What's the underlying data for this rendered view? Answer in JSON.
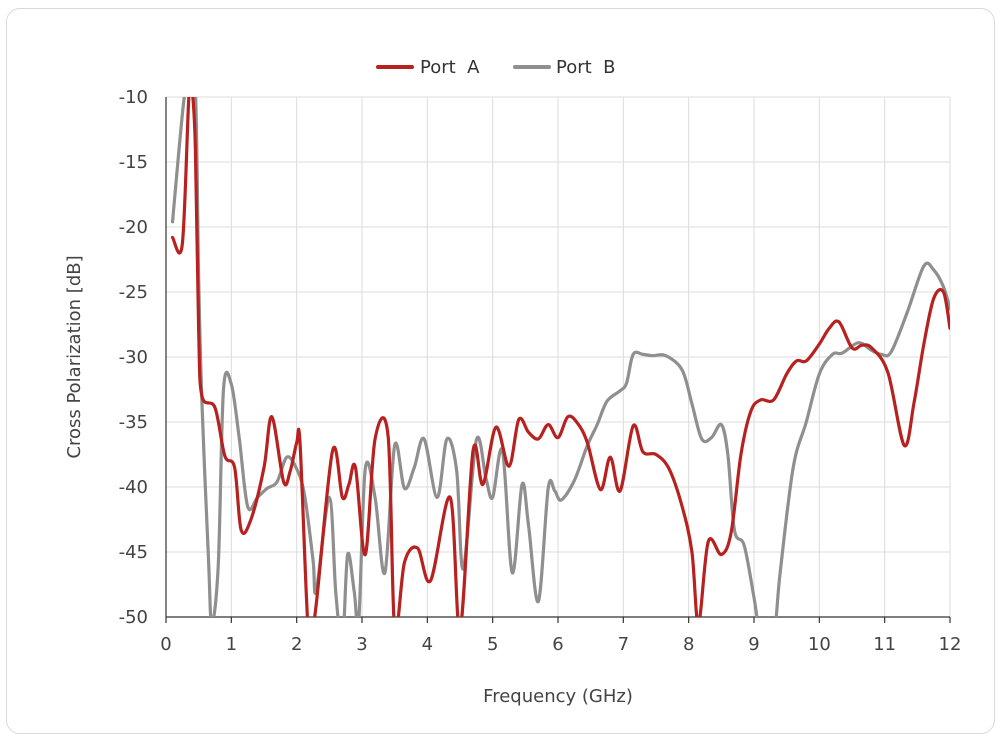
{
  "chart_data": {
    "type": "line",
    "xlabel": "Frequency (GHz)",
    "ylabel": "Cross Polarization [dB]",
    "xlim": [
      0,
      12
    ],
    "ylim": [
      -50,
      -10
    ],
    "x_ticks": [
      "0",
      "1",
      "2",
      "3",
      "4",
      "5",
      "6",
      "7",
      "8",
      "9",
      "10",
      "11",
      "12"
    ],
    "y_ticks": [
      "-10",
      "-15",
      "-20",
      "-25",
      "-30",
      "-35",
      "-40",
      "-45",
      "-50"
    ],
    "grid": true,
    "legend_position": "top-center",
    "series": [
      {
        "name": "Port  A",
        "color": "#b7211f",
        "points": [
          [
            0.1,
            -20.8
          ],
          [
            0.25,
            -21.3
          ],
          [
            0.35,
            -10
          ],
          [
            0.4,
            -9.5
          ],
          [
            0.45,
            -14
          ],
          [
            0.5,
            -28
          ],
          [
            0.55,
            -33
          ],
          [
            0.75,
            -33.9
          ],
          [
            0.9,
            -37.6
          ],
          [
            1.05,
            -38.5
          ],
          [
            1.15,
            -43.3
          ],
          [
            1.3,
            -42.5
          ],
          [
            1.5,
            -38.5
          ],
          [
            1.62,
            -34.6
          ],
          [
            1.8,
            -39.6
          ],
          [
            1.9,
            -38.8
          ],
          [
            2.0,
            -36.6
          ],
          [
            2.05,
            -36.5
          ],
          [
            2.15,
            -48.5
          ],
          [
            2.2,
            -52
          ],
          [
            2.3,
            -49
          ],
          [
            2.55,
            -37.2
          ],
          [
            2.7,
            -40.8
          ],
          [
            2.8,
            -39.8
          ],
          [
            2.9,
            -38.5
          ],
          [
            3.05,
            -45.2
          ],
          [
            3.2,
            -36.3
          ],
          [
            3.4,
            -36.1
          ],
          [
            3.5,
            -51
          ],
          [
            3.65,
            -45.8
          ],
          [
            3.85,
            -44.7
          ],
          [
            4.05,
            -47.2
          ],
          [
            4.35,
            -40.8
          ],
          [
            4.5,
            -51
          ],
          [
            4.7,
            -37.2
          ],
          [
            4.85,
            -39.8
          ],
          [
            5.05,
            -35.4
          ],
          [
            5.25,
            -38.4
          ],
          [
            5.4,
            -34.8
          ],
          [
            5.55,
            -35.8
          ],
          [
            5.7,
            -36.3
          ],
          [
            5.85,
            -35.2
          ],
          [
            6.0,
            -36.2
          ],
          [
            6.15,
            -34.6
          ],
          [
            6.3,
            -35.1
          ],
          [
            6.45,
            -36.6
          ],
          [
            6.65,
            -40.2
          ],
          [
            6.8,
            -37.7
          ],
          [
            6.95,
            -40.3
          ],
          [
            7.15,
            -35.3
          ],
          [
            7.3,
            -37.3
          ],
          [
            7.5,
            -37.5
          ],
          [
            7.7,
            -38.6
          ],
          [
            7.9,
            -41.5
          ],
          [
            8.05,
            -45
          ],
          [
            8.15,
            -50.5
          ],
          [
            8.3,
            -44.2
          ],
          [
            8.5,
            -45.2
          ],
          [
            8.65,
            -43.5
          ],
          [
            8.8,
            -37.5
          ],
          [
            8.95,
            -34.2
          ],
          [
            9.1,
            -33.3
          ],
          [
            9.3,
            -33.3
          ],
          [
            9.5,
            -31.3
          ],
          [
            9.65,
            -30.3
          ],
          [
            9.8,
            -30.3
          ],
          [
            10.0,
            -29
          ],
          [
            10.15,
            -27.8
          ],
          [
            10.3,
            -27.3
          ],
          [
            10.5,
            -29.3
          ],
          [
            10.65,
            -29.1
          ],
          [
            10.8,
            -29.3
          ],
          [
            11.05,
            -31.2
          ],
          [
            11.3,
            -36.8
          ],
          [
            11.45,
            -33.5
          ],
          [
            11.6,
            -29
          ],
          [
            11.75,
            -25.5
          ],
          [
            11.9,
            -25
          ],
          [
            12.0,
            -27.8
          ]
        ]
      },
      {
        "name": "Port  B",
        "color": "#8f8f8f",
        "points": [
          [
            0.1,
            -19.6
          ],
          [
            0.2,
            -14
          ],
          [
            0.28,
            -10
          ],
          [
            0.35,
            -8.5
          ],
          [
            0.45,
            -9.5
          ],
          [
            0.5,
            -24
          ],
          [
            0.55,
            -33.5
          ],
          [
            0.65,
            -45.5
          ],
          [
            0.7,
            -50.5
          ],
          [
            0.8,
            -46
          ],
          [
            0.88,
            -32.5
          ],
          [
            1.0,
            -32.1
          ],
          [
            1.12,
            -36.2
          ],
          [
            1.25,
            -41.5
          ],
          [
            1.4,
            -40.8
          ],
          [
            1.55,
            -40.1
          ],
          [
            1.7,
            -39.6
          ],
          [
            1.85,
            -37.7
          ],
          [
            2.0,
            -38.6
          ],
          [
            2.12,
            -40.6
          ],
          [
            2.25,
            -45.6
          ],
          [
            2.3,
            -48
          ],
          [
            2.5,
            -40.8
          ],
          [
            2.6,
            -48.2
          ],
          [
            2.7,
            -52
          ],
          [
            2.78,
            -45.2
          ],
          [
            2.88,
            -48
          ],
          [
            2.95,
            -50.3
          ],
          [
            3.05,
            -38.6
          ],
          [
            3.2,
            -40.8
          ],
          [
            3.35,
            -46.6
          ],
          [
            3.5,
            -36.8
          ],
          [
            3.65,
            -40.1
          ],
          [
            3.8,
            -38.5
          ],
          [
            3.95,
            -36.3
          ],
          [
            4.15,
            -40.8
          ],
          [
            4.3,
            -36.3
          ],
          [
            4.45,
            -38.8
          ],
          [
            4.55,
            -46.3
          ],
          [
            4.75,
            -36.4
          ],
          [
            4.9,
            -39.4
          ],
          [
            5.0,
            -40.8
          ],
          [
            5.15,
            -37.2
          ],
          [
            5.3,
            -46.6
          ],
          [
            5.45,
            -39.8
          ],
          [
            5.55,
            -43
          ],
          [
            5.7,
            -48.8
          ],
          [
            5.85,
            -40.1
          ],
          [
            5.95,
            -40.3
          ],
          [
            6.05,
            -41
          ],
          [
            6.25,
            -39.5
          ],
          [
            6.45,
            -36.8
          ],
          [
            6.6,
            -35.2
          ],
          [
            6.75,
            -33.4
          ],
          [
            6.95,
            -32.6
          ],
          [
            7.05,
            -32
          ],
          [
            7.15,
            -29.8
          ],
          [
            7.3,
            -29.8
          ],
          [
            7.45,
            -29.9
          ],
          [
            7.65,
            -29.9
          ],
          [
            7.9,
            -31
          ],
          [
            8.05,
            -33.6
          ],
          [
            8.2,
            -36.3
          ],
          [
            8.35,
            -36.2
          ],
          [
            8.5,
            -35.2
          ],
          [
            8.6,
            -37.5
          ],
          [
            8.7,
            -43.3
          ],
          [
            8.85,
            -44.5
          ],
          [
            9.0,
            -48.5
          ],
          [
            9.12,
            -52
          ],
          [
            9.3,
            -51.5
          ],
          [
            9.4,
            -46.6
          ],
          [
            9.6,
            -38.5
          ],
          [
            9.8,
            -35
          ],
          [
            10.0,
            -31.3
          ],
          [
            10.2,
            -29.8
          ],
          [
            10.35,
            -29.7
          ],
          [
            10.6,
            -28.9
          ],
          [
            10.8,
            -29.5
          ],
          [
            10.95,
            -29.8
          ],
          [
            11.1,
            -29.6
          ],
          [
            11.35,
            -26.5
          ],
          [
            11.6,
            -23
          ],
          [
            11.75,
            -23.3
          ],
          [
            11.9,
            -24.6
          ],
          [
            12.0,
            -26.3
          ]
        ]
      }
    ]
  }
}
